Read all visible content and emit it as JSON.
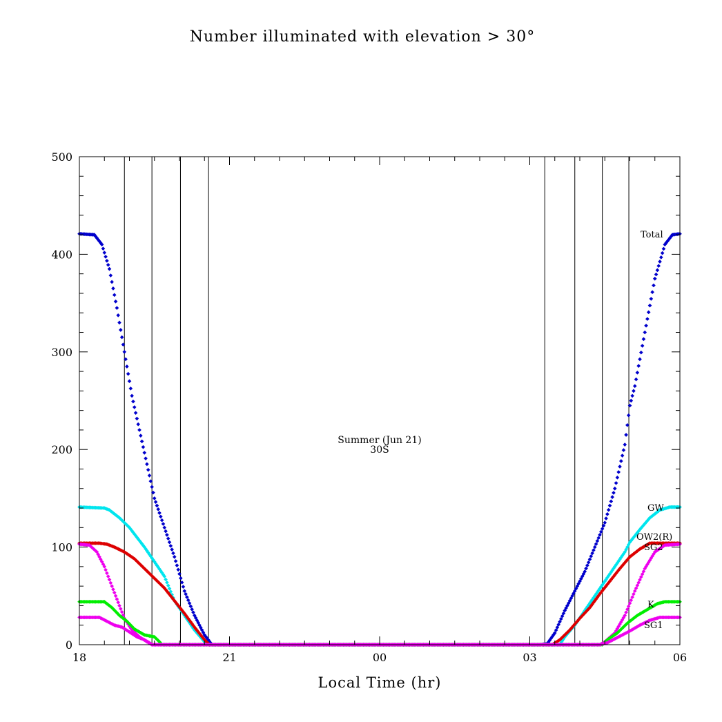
{
  "chart_data": {
    "type": "scatter",
    "title": "Number illuminated with elevation > 30°",
    "xlabel": "Local Time (hr)",
    "ylabel": "",
    "xlim": [
      18,
      30
    ],
    "ylim": [
      0,
      500
    ],
    "x_tick_labels": [
      {
        "x": 18,
        "label": "18"
      },
      {
        "x": 21,
        "label": "21"
      },
      {
        "x": 24,
        "label": "00"
      },
      {
        "x": 27,
        "label": "03"
      },
      {
        "x": 30,
        "label": "06"
      }
    ],
    "y_ticks": [
      0,
      100,
      200,
      300,
      400,
      500
    ],
    "annotations": [
      "Summer (Jun 21)",
      "30S"
    ],
    "vertical_lines_x": [
      18.9,
      19.45,
      20.02,
      20.58,
      27.3,
      27.9,
      28.45,
      28.98
    ],
    "series": [
      {
        "name": "Total",
        "color": "#0000cc",
        "points": [
          [
            18.0,
            421
          ],
          [
            18.3,
            420
          ],
          [
            18.45,
            410
          ],
          [
            18.6,
            385
          ],
          [
            18.75,
            345
          ],
          [
            18.9,
            300
          ],
          [
            19.05,
            255
          ],
          [
            19.2,
            220
          ],
          [
            19.35,
            185
          ],
          [
            19.5,
            150
          ],
          [
            19.7,
            120
          ],
          [
            19.9,
            90
          ],
          [
            20.1,
            55
          ],
          [
            20.3,
            30
          ],
          [
            20.5,
            10
          ],
          [
            20.65,
            0
          ],
          [
            21.0,
            0
          ],
          [
            24.0,
            0
          ],
          [
            27.2,
            0
          ],
          [
            27.35,
            1
          ],
          [
            27.5,
            12
          ],
          [
            27.7,
            35
          ],
          [
            27.9,
            55
          ],
          [
            28.1,
            75
          ],
          [
            28.3,
            100
          ],
          [
            28.5,
            125
          ],
          [
            28.7,
            160
          ],
          [
            28.9,
            205
          ],
          [
            29.0,
            245
          ],
          [
            29.1,
            265
          ],
          [
            29.3,
            320
          ],
          [
            29.5,
            375
          ],
          [
            29.7,
            410
          ],
          [
            29.85,
            420
          ],
          [
            30.0,
            421
          ]
        ]
      },
      {
        "name": "GW",
        "color": "#00e5ee",
        "points": [
          [
            18.0,
            141
          ],
          [
            18.5,
            140
          ],
          [
            18.6,
            138
          ],
          [
            18.8,
            130
          ],
          [
            19.0,
            120
          ],
          [
            19.3,
            100
          ],
          [
            19.5,
            85
          ],
          [
            19.7,
            70
          ],
          [
            19.9,
            45
          ],
          [
            20.1,
            30
          ],
          [
            20.3,
            15
          ],
          [
            20.5,
            3
          ],
          [
            20.6,
            0
          ],
          [
            24.0,
            0
          ],
          [
            27.6,
            0
          ],
          [
            27.7,
            8
          ],
          [
            27.9,
            20
          ],
          [
            28.1,
            35
          ],
          [
            28.3,
            50
          ],
          [
            28.5,
            65
          ],
          [
            28.7,
            80
          ],
          [
            28.9,
            95
          ],
          [
            29.0,
            105
          ],
          [
            29.2,
            118
          ],
          [
            29.4,
            130
          ],
          [
            29.6,
            138
          ],
          [
            29.8,
            141
          ],
          [
            30.0,
            141
          ]
        ]
      },
      {
        "name": "OW2(R)",
        "color": "#dd0000",
        "points": [
          [
            18.0,
            104
          ],
          [
            18.4,
            104
          ],
          [
            18.55,
            103
          ],
          [
            18.7,
            100
          ],
          [
            18.9,
            95
          ],
          [
            19.1,
            88
          ],
          [
            19.3,
            78
          ],
          [
            19.5,
            68
          ],
          [
            19.7,
            58
          ],
          [
            19.9,
            45
          ],
          [
            20.1,
            32
          ],
          [
            20.3,
            18
          ],
          [
            20.5,
            5
          ],
          [
            20.6,
            0
          ],
          [
            24.0,
            0
          ],
          [
            27.45,
            0
          ],
          [
            27.6,
            5
          ],
          [
            27.8,
            15
          ],
          [
            28.0,
            27
          ],
          [
            28.2,
            38
          ],
          [
            28.4,
            52
          ],
          [
            28.6,
            65
          ],
          [
            28.8,
            78
          ],
          [
            29.0,
            90
          ],
          [
            29.2,
            98
          ],
          [
            29.4,
            104
          ],
          [
            30.0,
            104
          ]
        ]
      },
      {
        "name": "SG2",
        "color": "#ee00ee",
        "points": [
          [
            18.0,
            103
          ],
          [
            18.2,
            102
          ],
          [
            18.35,
            95
          ],
          [
            18.5,
            80
          ],
          [
            18.65,
            60
          ],
          [
            18.8,
            40
          ],
          [
            18.9,
            27
          ],
          [
            19.05,
            15
          ],
          [
            19.2,
            8
          ],
          [
            19.35,
            3
          ],
          [
            19.45,
            0
          ],
          [
            24.0,
            0
          ],
          [
            28.4,
            0
          ],
          [
            28.5,
            3
          ],
          [
            28.7,
            12
          ],
          [
            28.9,
            30
          ],
          [
            29.1,
            55
          ],
          [
            29.3,
            78
          ],
          [
            29.5,
            95
          ],
          [
            29.7,
            102
          ],
          [
            30.0,
            103
          ]
        ]
      },
      {
        "name": "K",
        "color": "#00ee00",
        "points": [
          [
            18.0,
            44
          ],
          [
            18.5,
            44
          ],
          [
            18.65,
            38
          ],
          [
            18.8,
            30
          ],
          [
            18.95,
            24
          ],
          [
            19.1,
            16
          ],
          [
            19.3,
            10
          ],
          [
            19.5,
            8
          ],
          [
            19.6,
            3
          ],
          [
            19.65,
            0
          ],
          [
            24.0,
            0
          ],
          [
            28.45,
            0
          ],
          [
            28.55,
            5
          ],
          [
            28.75,
            12
          ],
          [
            28.95,
            22
          ],
          [
            29.15,
            30
          ],
          [
            29.35,
            36
          ],
          [
            29.55,
            42
          ],
          [
            29.7,
            44
          ],
          [
            30.0,
            44
          ]
        ]
      },
      {
        "name": "SG1",
        "color": "#ee00ee",
        "points": [
          [
            18.0,
            28
          ],
          [
            18.4,
            28
          ],
          [
            18.55,
            24
          ],
          [
            18.7,
            20
          ],
          [
            18.85,
            18
          ],
          [
            19.0,
            13
          ],
          [
            19.15,
            8
          ],
          [
            19.3,
            5
          ],
          [
            19.4,
            2
          ],
          [
            19.45,
            0
          ],
          [
            24.0,
            0
          ],
          [
            28.4,
            0
          ],
          [
            28.55,
            2
          ],
          [
            28.7,
            6
          ],
          [
            28.85,
            10
          ],
          [
            29.0,
            14
          ],
          [
            29.2,
            20
          ],
          [
            29.4,
            25
          ],
          [
            29.6,
            28
          ],
          [
            30.0,
            28
          ]
        ]
      }
    ]
  }
}
